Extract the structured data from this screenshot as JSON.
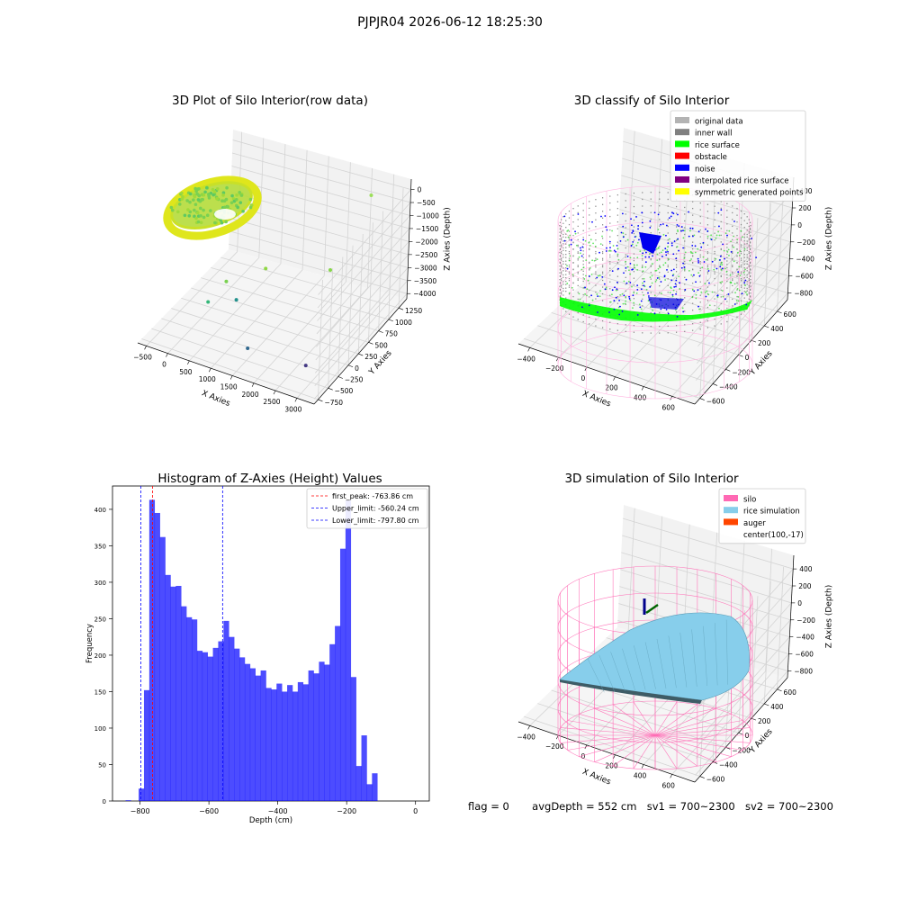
{
  "suptitle": "PJPJR04 2026-06-12 18:25:30",
  "footer": {
    "flag": "flag = 0",
    "avg_depth": "avgDepth = 552 cm",
    "sv1": "sv1 = 700~2300",
    "sv2": "sv2 = 700~2300"
  },
  "chart_data": [
    {
      "type": "scatter",
      "projection": "3d",
      "title": "3D Plot of Silo Interior(row data)",
      "xlabel": "X Axies",
      "ylabel": "Y Axies",
      "zlabel": "Z Axies (Depth)",
      "x_ticks": [
        "−500",
        "0",
        "500",
        "1000",
        "1500",
        "2000",
        "2500",
        "3000"
      ],
      "y_ticks": [
        "−750",
        "−500",
        "−250",
        "0",
        "250",
        "500",
        "750",
        "1000",
        "1250"
      ],
      "z_ticks": [
        "−4000",
        "−3500",
        "−3000",
        "−2500",
        "−2000",
        "−1500",
        "−1000",
        "−500",
        "0"
      ],
      "xlim": [
        -600,
        3000
      ],
      "ylim": [
        -800,
        1300
      ],
      "zlim": [
        -4100,
        0
      ],
      "colormap": "viridis",
      "outlier_points": [
        {
          "x": 2400,
          "y": 1100,
          "z": -200
        },
        {
          "x": 1000,
          "y": 300,
          "z": -2300
        },
        {
          "x": 1800,
          "y": 900,
          "z": -2800
        },
        {
          "x": 300,
          "y": 200,
          "z": -3000
        },
        {
          "x": 200,
          "y": -100,
          "z": -3300
        },
        {
          "x": 600,
          "y": 100,
          "z": -3300
        },
        {
          "x": 1200,
          "y": -300,
          "z": -4000
        },
        {
          "x": 2300,
          "y": -200,
          "z": -4100
        }
      ]
    },
    {
      "type": "scatter",
      "projection": "3d",
      "title": "3D classify of Silo Interior",
      "xlabel": "X Axies",
      "ylabel": "Y Axies",
      "zlabel": "Z Axies (Depth)",
      "x_ticks": [
        "−400",
        "−200",
        "0",
        "200",
        "400",
        "600"
      ],
      "y_ticks": [
        "−600",
        "−400",
        "−200",
        "0",
        "200",
        "400",
        "600"
      ],
      "z_ticks": [
        "−800",
        "−600",
        "−400",
        "−200",
        "0",
        "200",
        "400"
      ],
      "legend_position": "top-right",
      "legend": [
        {
          "label": "original data",
          "color": "#b3b3b3"
        },
        {
          "label": "inner wall",
          "color": "#808080"
        },
        {
          "label": "rice surface",
          "color": "#00ff00"
        },
        {
          "label": "obstacle",
          "color": "#ff0000"
        },
        {
          "label": "noise",
          "color": "#0000ff"
        },
        {
          "label": "interpolated rice surface",
          "color": "#800080"
        },
        {
          "label": "symmetric generated points",
          "color": "#ffff00"
        }
      ]
    },
    {
      "type": "bar",
      "title": "Histogram of Z-Axies (Height) Values",
      "xlabel": "Depth (cm)",
      "ylabel": "Frequency",
      "xlim": [
        -880,
        40
      ],
      "ylim": [
        0,
        432
      ],
      "x_ticks": [
        -800,
        -600,
        -400,
        -200,
        0
      ],
      "y_ticks": [
        0,
        50,
        100,
        150,
        200,
        250,
        300,
        350,
        400
      ],
      "bar_color": "#0000ff",
      "bin_width": 15.4,
      "bin_edges_start": -804,
      "values": [
        17,
        152,
        413,
        395,
        362,
        310,
        294,
        295,
        267,
        252,
        249,
        206,
        204,
        198,
        210,
        219,
        247,
        225,
        209,
        197,
        188,
        182,
        172,
        179,
        155,
        153,
        161,
        150,
        159,
        150,
        163,
        160,
        179,
        175,
        191,
        187,
        215,
        240,
        346,
        412,
        170,
        48,
        90,
        23,
        38
      ],
      "extra_bars": [
        {
          "left": -842,
          "right": -826,
          "value": 1
        }
      ],
      "vlines": [
        {
          "label": "first_peak: -763.86 cm",
          "x": -763.86,
          "color": "#ff0000"
        },
        {
          "label": "Upper_limit: -560.24 cm",
          "x": -560.24,
          "color": "#0000ff"
        },
        {
          "label": "Lower_limit: -797.80 cm",
          "x": -797.8,
          "color": "#0000ff"
        }
      ],
      "legend_position": "top-right"
    },
    {
      "type": "area",
      "projection": "3d",
      "title": "3D simulation of Silo Interior",
      "xlabel": "X Axies",
      "ylabel": "Y Axies",
      "zlabel": "Z Axies (Depth)",
      "x_ticks": [
        "−400",
        "−200",
        "0",
        "200",
        "400",
        "600"
      ],
      "y_ticks": [
        "−600",
        "−400",
        "−200",
        "0",
        "200",
        "400",
        "600"
      ],
      "z_ticks": [
        "−800",
        "−600",
        "−400",
        "−200",
        "0",
        "200",
        "400"
      ],
      "legend_position": "top-right",
      "legend": [
        {
          "label": "silo",
          "color": "#ff69b4"
        },
        {
          "label": "rice simulation",
          "color": "#87ceeb"
        },
        {
          "label": "auger",
          "color": "#ff4500"
        },
        {
          "label": "center(100,-17)",
          "color": ""
        }
      ]
    }
  ]
}
